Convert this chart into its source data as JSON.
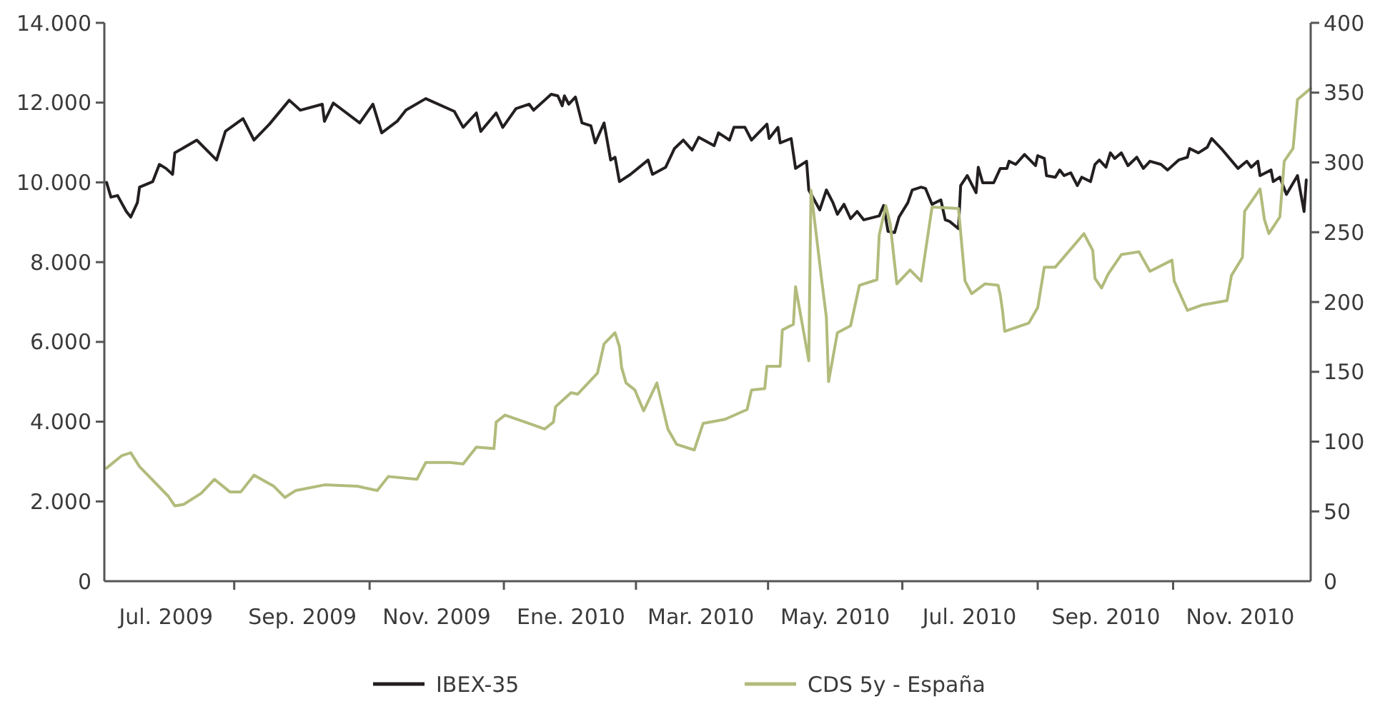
{
  "chart_data": {
    "type": "line",
    "xlim": [
      "2009-06-03",
      "2010-12-03"
    ],
    "xticks": [
      {
        "value": "2009-07-01",
        "label": "Jul. 2009"
      },
      {
        "value": "2009-09-01",
        "label": "Sep. 2009"
      },
      {
        "value": "2009-11-01",
        "label": "Nov. 2009"
      },
      {
        "value": "2010-01-01",
        "label": "Ene. 2010"
      },
      {
        "value": "2010-03-01",
        "label": "Mar. 2010"
      },
      {
        "value": "2010-05-01",
        "label": "May. 2010"
      },
      {
        "value": "2010-07-01",
        "label": "Jul. 2010"
      },
      {
        "value": "2010-09-01",
        "label": "Sep. 2010"
      },
      {
        "value": "2010-11-01",
        "label": "Nov. 2010"
      }
    ],
    "ylim": [
      0,
      14000
    ],
    "yticks": [
      0,
      {
        "value": 2000,
        "label": "2.000"
      },
      {
        "value": 4000,
        "label": "4.000"
      },
      {
        "value": 6000,
        "label": "6.000"
      },
      {
        "value": 8000,
        "label": "8.000"
      },
      {
        "value": 10000,
        "label": "10.000"
      },
      {
        "value": 12000,
        "label": "12.000"
      },
      {
        "value": 14000,
        "label": "14.000"
      }
    ],
    "y2lim": [
      0,
      400
    ],
    "y2ticks": [
      0,
      50,
      100,
      150,
      200,
      250,
      300,
      350,
      400
    ],
    "legend": "bottom",
    "series": [
      {
        "name": "IBEX-35",
        "color": "#231f20",
        "x": [
          "2009-06-04",
          "2009-06-06",
          "2009-06-09",
          "2009-06-13",
          "2009-06-15",
          "2009-06-18",
          "2009-06-19",
          "2009-06-25",
          "2009-06-28",
          "2009-07-01",
          "2009-07-04",
          "2009-07-05",
          "2009-07-15",
          "2009-07-24",
          "2009-07-28",
          "2009-08-05",
          "2009-08-10",
          "2009-08-17",
          "2009-08-26",
          "2009-08-31",
          "2009-09-10",
          "2009-09-11",
          "2009-09-15",
          "2009-09-27",
          "2009-10-03",
          "2009-10-07",
          "2009-10-14",
          "2009-10-18",
          "2009-10-27",
          "2009-11-09",
          "2009-11-13",
          "2009-11-19",
          "2009-11-21",
          "2009-11-28",
          "2009-12-01",
          "2009-12-07",
          "2009-12-13",
          "2009-12-15",
          "2009-12-23",
          "2009-12-26",
          "2009-12-28",
          "2009-12-29",
          "2009-12-31",
          "2010-01-03",
          "2010-01-06",
          "2010-01-10",
          "2010-01-12",
          "2010-01-16",
          "2010-01-19",
          "2010-01-21",
          "2010-01-23",
          "2010-01-28",
          "2010-02-05",
          "2010-02-07",
          "2010-02-13",
          "2010-02-17",
          "2010-02-21",
          "2010-02-25",
          "2010-02-28",
          "2010-03-07",
          "2010-03-09",
          "2010-03-14",
          "2010-03-16",
          "2010-03-21",
          "2010-03-24",
          "2010-03-31",
          "2010-04-01",
          "2010-04-05",
          "2010-04-06",
          "2010-04-11",
          "2010-04-13",
          "2010-04-18",
          "2010-04-19",
          "2010-04-24",
          "2010-04-27",
          "2010-04-30",
          "2010-05-02",
          "2010-05-05",
          "2010-05-08",
          "2010-05-11",
          "2010-05-14",
          "2010-05-21",
          "2010-05-23",
          "2010-05-25",
          "2010-05-28",
          "2010-05-30",
          "2010-06-03",
          "2010-06-05",
          "2010-06-09",
          "2010-06-11",
          "2010-06-14",
          "2010-06-18",
          "2010-06-20",
          "2010-06-22",
          "2010-06-26",
          "2010-06-27",
          "2010-06-30",
          "2010-07-04",
          "2010-07-05",
          "2010-07-07",
          "2010-07-12",
          "2010-07-15",
          "2010-07-18",
          "2010-07-19",
          "2010-07-22",
          "2010-07-26",
          "2010-07-31",
          "2010-08-01",
          "2010-08-04",
          "2010-08-05",
          "2010-08-09",
          "2010-08-11",
          "2010-08-13",
          "2010-08-16",
          "2010-08-19",
          "2010-08-21",
          "2010-08-25",
          "2010-08-27",
          "2010-08-29",
          "2010-09-01",
          "2010-09-03",
          "2010-09-05",
          "2010-09-08",
          "2010-09-11",
          "2010-09-15",
          "2010-09-18",
          "2010-09-21",
          "2010-09-26",
          "2010-09-29",
          "2010-10-04",
          "2010-10-08",
          "2010-10-09",
          "2010-10-13",
          "2010-10-17",
          "2010-10-19",
          "2010-10-24",
          "2010-10-31",
          "2010-11-04",
          "2010-11-06",
          "2010-11-09",
          "2010-11-10",
          "2010-11-15",
          "2010-11-16",
          "2010-11-19",
          "2010-11-22",
          "2010-11-27",
          "2010-11-30",
          "2010-12-01"
        ],
        "values": [
          10000,
          9630,
          9670,
          9270,
          9130,
          9490,
          9880,
          10020,
          10450,
          10350,
          10200,
          10740,
          11060,
          10560,
          11280,
          11600,
          11060,
          11460,
          12060,
          11810,
          11960,
          11530,
          11990,
          11490,
          11960,
          11240,
          11530,
          11810,
          12100,
          11780,
          11380,
          11740,
          11280,
          11740,
          11380,
          11850,
          11960,
          11810,
          12210,
          12170,
          11920,
          12170,
          11960,
          12140,
          11490,
          11420,
          10990,
          11490,
          10560,
          10630,
          10020,
          10200,
          10560,
          10200,
          10380,
          10850,
          11060,
          10810,
          11130,
          10920,
          11240,
          11060,
          11380,
          11380,
          11060,
          11460,
          11100,
          11380,
          10990,
          11100,
          10350,
          10530,
          9810,
          9310,
          9810,
          9490,
          9200,
          9450,
          9090,
          9270,
          9060,
          9160,
          9420,
          8770,
          8740,
          9130,
          9490,
          9810,
          9880,
          9850,
          9450,
          9560,
          9060,
          9020,
          8840,
          9920,
          10170,
          9740,
          10380,
          9990,
          9990,
          10350,
          10350,
          10530,
          10450,
          10700,
          10420,
          10670,
          10600,
          10170,
          10130,
          10310,
          10170,
          10240,
          9920,
          10130,
          10020,
          10450,
          10560,
          10380,
          10740,
          10600,
          10740,
          10420,
          10630,
          10350,
          10530,
          10450,
          10310,
          10560,
          10630,
          10850,
          10740,
          10880,
          11100,
          10810,
          10350,
          10530,
          10380,
          10530,
          10170,
          10310,
          10020,
          10130,
          9700,
          10170,
          9270,
          10060
        ]
      },
      {
        "name": "CDS 5y - España",
        "color": "#b3bb7c",
        "axis": "y2",
        "x": [
          "2009-06-04",
          "2009-06-11",
          "2009-06-15",
          "2009-06-19",
          "2009-07-02",
          "2009-07-05",
          "2009-07-09",
          "2009-07-17",
          "2009-07-23",
          "2009-07-30",
          "2009-08-04",
          "2009-08-10",
          "2009-08-19",
          "2009-08-24",
          "2009-08-29",
          "2009-09-11",
          "2009-09-26",
          "2009-10-05",
          "2009-10-10",
          "2009-10-23",
          "2009-10-27",
          "2009-11-07",
          "2009-11-13",
          "2009-11-19",
          "2009-11-27",
          "2009-11-28",
          "2009-12-02",
          "2009-12-13",
          "2009-12-20",
          "2009-12-24",
          "2009-12-25",
          "2010-01-01",
          "2010-01-04",
          "2010-01-13",
          "2010-01-16",
          "2010-01-21",
          "2010-01-23",
          "2010-01-24",
          "2010-01-26",
          "2010-01-30",
          "2010-02-03",
          "2010-02-09",
          "2010-02-14",
          "2010-02-18",
          "2010-02-26",
          "2010-03-02",
          "2010-03-12",
          "2010-03-22",
          "2010-03-24",
          "2010-03-30",
          "2010-03-31",
          "2010-04-06",
          "2010-04-07",
          "2010-04-12",
          "2010-04-13",
          "2010-04-19",
          "2010-04-20",
          "2010-04-25",
          "2010-04-27",
          "2010-04-28",
          "2010-05-02",
          "2010-05-08",
          "2010-05-12",
          "2010-05-20",
          "2010-05-21",
          "2010-05-24",
          "2010-05-26",
          "2010-05-29",
          "2010-06-04",
          "2010-06-09",
          "2010-06-14",
          "2010-06-26",
          "2010-06-29",
          "2010-07-02",
          "2010-07-08",
          "2010-07-14",
          "2010-07-15",
          "2010-07-16",
          "2010-07-17",
          "2010-07-28",
          "2010-08-01",
          "2010-08-04",
          "2010-08-09",
          "2010-08-22",
          "2010-08-26",
          "2010-08-27",
          "2010-08-30",
          "2010-09-02",
          "2010-09-08",
          "2010-09-16",
          "2010-09-21",
          "2010-10-01",
          "2010-10-02",
          "2010-10-08",
          "2010-10-15",
          "2010-10-26",
          "2010-10-28",
          "2010-11-02",
          "2010-11-03",
          "2010-11-10",
          "2010-11-12",
          "2010-11-14",
          "2010-11-19",
          "2010-11-21",
          "2010-11-25",
          "2010-11-27",
          "2010-12-03"
        ],
        "values": [
          81,
          90,
          92,
          82,
          61,
          54,
          55,
          63,
          73,
          64,
          64,
          76,
          68,
          60,
          65,
          69,
          68,
          65,
          75,
          73,
          85,
          85,
          84,
          96,
          95,
          114,
          119,
          113,
          109,
          114,
          125,
          135,
          134,
          149,
          170,
          178,
          168,
          153,
          142,
          137,
          122,
          142,
          109,
          98,
          94,
          113,
          116,
          123,
          137,
          138,
          154,
          154,
          180,
          184,
          211,
          158,
          280,
          214,
          189,
          143,
          178,
          183,
          212,
          216,
          248,
          269,
          256,
          213,
          223,
          215,
          268,
          267,
          215,
          206,
          213,
          212,
          205,
          194,
          179,
          185,
          196,
          225,
          225,
          249,
          237,
          217,
          210,
          220,
          234,
          236,
          222,
          230,
          215,
          194,
          198,
          201,
          219,
          232,
          265,
          281,
          259,
          249,
          261,
          301,
          310,
          345,
          353
        ]
      }
    ]
  }
}
